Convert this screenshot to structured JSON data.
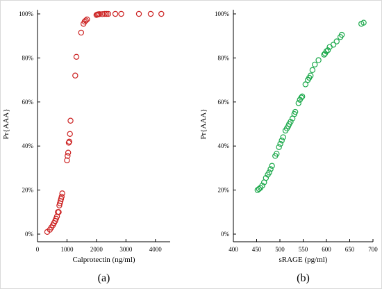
{
  "chart_data": [
    {
      "type": "scatter",
      "panel_label": "(a)",
      "xlabel": "Calprotectin (ng/ml)",
      "ylabel": "Pr{AAA}",
      "xlim": [
        0,
        4500
      ],
      "ylim": [
        0,
        1
      ],
      "x_ticks": [
        0,
        1000,
        2000,
        3000,
        4000
      ],
      "x_tick_labels": [
        "0",
        "1000",
        "2000",
        "3000",
        "4000"
      ],
      "y_ticks": [
        0,
        0.2,
        0.4,
        0.6,
        0.8,
        1.0
      ],
      "y_tick_labels": [
        "0%",
        "20%",
        "40%",
        "60%",
        "80%",
        "100%"
      ],
      "grid": false,
      "marker": "open-circle",
      "color": "#cc2222",
      "x": [
        330,
        420,
        470,
        520,
        560,
        600,
        630,
        660,
        690,
        720,
        740,
        760,
        780,
        800,
        820,
        840,
        1000,
        1020,
        1040,
        1060,
        1080,
        1100,
        1120,
        1280,
        1320,
        1480,
        1560,
        1600,
        1640,
        1680,
        2000,
        2030,
        2060,
        2100,
        2200,
        2280,
        2340,
        2400,
        2640,
        2840,
        3440,
        3840,
        4200
      ],
      "y": [
        0.01,
        0.02,
        0.03,
        0.04,
        0.05,
        0.06,
        0.07,
        0.08,
        0.1,
        0.1,
        0.13,
        0.14,
        0.15,
        0.16,
        0.17,
        0.185,
        0.335,
        0.355,
        0.37,
        0.415,
        0.42,
        0.455,
        0.515,
        0.72,
        0.805,
        0.915,
        0.955,
        0.965,
        0.97,
        0.975,
        0.995,
        0.997,
        0.998,
        0.999,
        0.999,
        1.0,
        1.0,
        1.0,
        1.0,
        1.0,
        1.0,
        1.0,
        1.0
      ]
    },
    {
      "type": "scatter",
      "panel_label": "(b)",
      "xlabel": "sRAGE (pg/ml)",
      "ylabel": "Pr{AAA}",
      "xlim": [
        400,
        700
      ],
      "ylim": [
        0,
        1
      ],
      "x_ticks": [
        400,
        450,
        500,
        550,
        600,
        650,
        700
      ],
      "x_tick_labels": [
        "400",
        "450",
        "500",
        "550",
        "600",
        "650",
        "700"
      ],
      "y_ticks": [
        0,
        0.2,
        0.4,
        0.6,
        0.8,
        1.0
      ],
      "y_tick_labels": [
        "0%",
        "20%",
        "40%",
        "60%",
        "80%",
        "100%"
      ],
      "grid": false,
      "marker": "open-circle",
      "color": "#1aa84a",
      "x": [
        452,
        455,
        458,
        462,
        466,
        470,
        474,
        477,
        480,
        483,
        490,
        493,
        498,
        501,
        504,
        507,
        512,
        515,
        518,
        520,
        523,
        527,
        531,
        533,
        540,
        543,
        546,
        548,
        555,
        560,
        563,
        566,
        570,
        575,
        583,
        595,
        597,
        600,
        603,
        607,
        615,
        622,
        630,
        633,
        675,
        680
      ],
      "y": [
        0.2,
        0.205,
        0.21,
        0.22,
        0.235,
        0.255,
        0.27,
        0.28,
        0.295,
        0.31,
        0.355,
        0.365,
        0.395,
        0.41,
        0.425,
        0.44,
        0.47,
        0.48,
        0.49,
        0.5,
        0.51,
        0.525,
        0.545,
        0.555,
        0.595,
        0.61,
        0.62,
        0.625,
        0.68,
        0.7,
        0.71,
        0.72,
        0.745,
        0.77,
        0.79,
        0.815,
        0.82,
        0.83,
        0.835,
        0.85,
        0.86,
        0.875,
        0.895,
        0.905,
        0.955,
        0.96
      ]
    }
  ]
}
